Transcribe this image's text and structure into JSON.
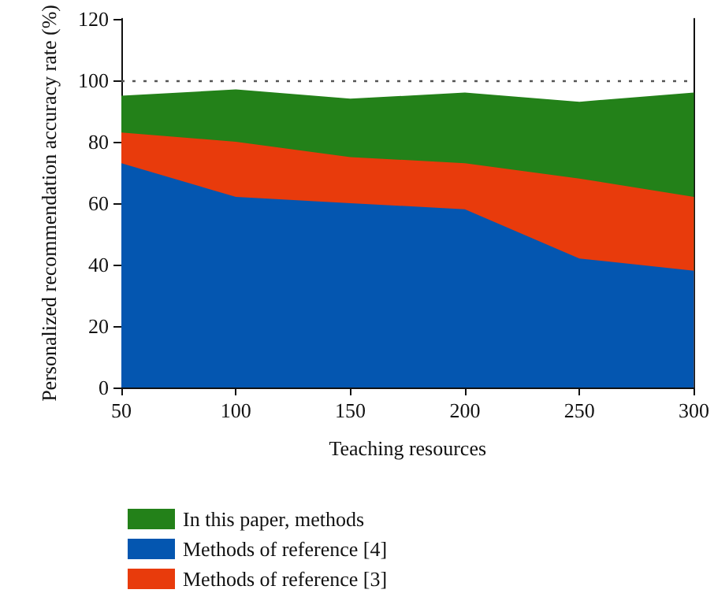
{
  "chart_data": {
    "type": "area",
    "xlabel": "Teaching resources",
    "ylabel": "Personalized recommendation accuracy rate (%)",
    "x": [
      50,
      100,
      150,
      200,
      250,
      300
    ],
    "series": [
      {
        "name": "In this paper, methods",
        "color": "#238119",
        "values": [
          95,
          97,
          94,
          96,
          93,
          96
        ]
      },
      {
        "name": "Methods of reference [4]",
        "color": "#0456b0",
        "values": [
          73,
          62,
          60,
          58,
          42,
          38
        ]
      },
      {
        "name": "Methods of reference [3]",
        "color": "#e83b0c",
        "values": [
          83,
          80,
          75,
          73,
          68,
          62
        ]
      }
    ],
    "xlim": [
      50,
      300
    ],
    "xticks": [
      50,
      100,
      150,
      200,
      250,
      300
    ],
    "ylim": [
      0,
      120
    ],
    "yticks": [
      0,
      20,
      40,
      60,
      80,
      100,
      120
    ],
    "ref_lines": [
      {
        "axis": "y",
        "value": 100,
        "color": "#555555",
        "line_style": "dotted"
      }
    ],
    "grid": false,
    "legend": "bottom left"
  }
}
